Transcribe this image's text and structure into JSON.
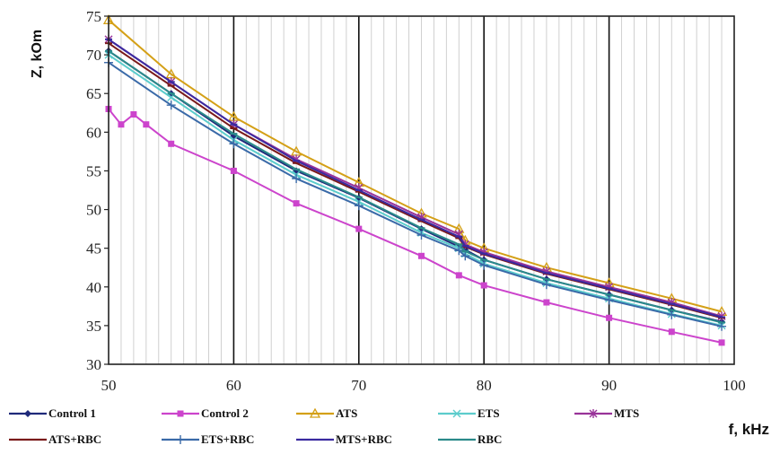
{
  "chart_data": {
    "type": "line",
    "xlabel": "f, kHz",
    "ylabel": "Z, kOm",
    "xlim": [
      50,
      100
    ],
    "ylim": [
      30,
      75
    ],
    "xticks": [
      "50",
      "60",
      "70",
      "80",
      "90",
      "100"
    ],
    "yticks": [
      "30",
      "35",
      "40",
      "45",
      "50",
      "55",
      "60",
      "65",
      "70",
      "75"
    ],
    "grid": {
      "major_x": true,
      "minor_x": true,
      "major_y": false
    },
    "legend_position": "bottom",
    "series": [
      {
        "name": "Control 1",
        "color": "#1f2a7a",
        "marker": "diamond",
        "x": [
          50,
          55,
          60,
          65,
          70,
          75,
          78,
          78.5,
          80,
          85,
          90,
          95,
          99
        ],
        "y": [
          70.5,
          65,
          59.5,
          55,
          51.5,
          47.5,
          45.2,
          44.8,
          43.5,
          41,
          39,
          37,
          35.5
        ]
      },
      {
        "name": "Control 2",
        "color": "#cc44cc",
        "marker": "square",
        "x": [
          50,
          51,
          52,
          53,
          55,
          60,
          65,
          70,
          75,
          78,
          80,
          85,
          90,
          95,
          99
        ],
        "y": [
          63,
          61,
          62.3,
          61,
          58.5,
          55,
          50.8,
          47.5,
          44,
          41.5,
          40.2,
          38,
          36,
          34.2,
          32.8
        ]
      },
      {
        "name": "ATS",
        "color": "#d4a017",
        "marker": "triangle",
        "x": [
          50,
          55,
          60,
          65,
          70,
          75,
          78,
          78.5,
          80,
          85,
          90,
          95,
          99
        ],
        "y": [
          74.5,
          67.5,
          62,
          57.5,
          53.5,
          49.5,
          47.5,
          46,
          45,
          42.5,
          40.5,
          38.5,
          36.8
        ]
      },
      {
        "name": "ETS",
        "color": "#5ccccc",
        "marker": "star",
        "x": [
          50,
          55,
          60,
          65,
          70,
          75,
          78,
          78.5,
          80,
          85,
          90,
          95,
          99
        ],
        "y": [
          70,
          64.5,
          59,
          54.5,
          51,
          47,
          45,
          44.3,
          43,
          40.5,
          38.5,
          36.5,
          35
        ]
      },
      {
        "name": "MTS",
        "color": "#993399",
        "marker": "asterisk",
        "x": [
          50,
          55,
          60,
          65,
          70,
          75,
          78,
          78.5,
          80,
          85,
          90,
          95,
          99
        ],
        "y": [
          72,
          66.5,
          61,
          56.5,
          52.8,
          49,
          46.8,
          45.5,
          44.5,
          42,
          40,
          38,
          36.2
        ]
      },
      {
        "name": "ATS+RBC",
        "color": "#7a1a1a",
        "marker": "dash",
        "x": [
          50,
          55,
          60,
          65,
          70,
          75,
          78,
          78.5,
          80,
          85,
          90,
          95,
          99
        ],
        "y": [
          71.5,
          66,
          60.5,
          56,
          52.3,
          48.5,
          46.3,
          45.2,
          44.2,
          41.7,
          39.7,
          37.7,
          36
        ]
      },
      {
        "name": "ETS+RBC",
        "color": "#3a6aa8",
        "marker": "plus",
        "x": [
          50,
          55,
          60,
          65,
          70,
          75,
          78,
          78.5,
          80,
          85,
          90,
          95,
          99
        ],
        "y": [
          69,
          63.5,
          58.5,
          54,
          50.5,
          46.7,
          44.7,
          44,
          42.8,
          40.3,
          38.3,
          36.4,
          34.9
        ]
      },
      {
        "name": "MTS+RBC",
        "color": "#3a2aa0",
        "marker": "dash",
        "x": [
          50,
          55,
          60,
          65,
          70,
          75,
          78,
          78.5,
          80,
          85,
          90,
          95,
          99
        ],
        "y": [
          72,
          66.5,
          61,
          56.3,
          52.5,
          48.7,
          46.5,
          45.3,
          44.3,
          41.8,
          39.8,
          37.8,
          36.1
        ]
      },
      {
        "name": "RBC",
        "color": "#2a8a8a",
        "marker": "dash",
        "x": [
          50,
          55,
          60,
          65,
          70,
          75,
          78,
          78.5,
          80,
          85,
          90,
          95,
          99
        ],
        "y": [
          70.5,
          65,
          59.8,
          55.2,
          51.6,
          47.6,
          45.5,
          44.6,
          43.5,
          41,
          39,
          37,
          35.4
        ]
      }
    ]
  }
}
